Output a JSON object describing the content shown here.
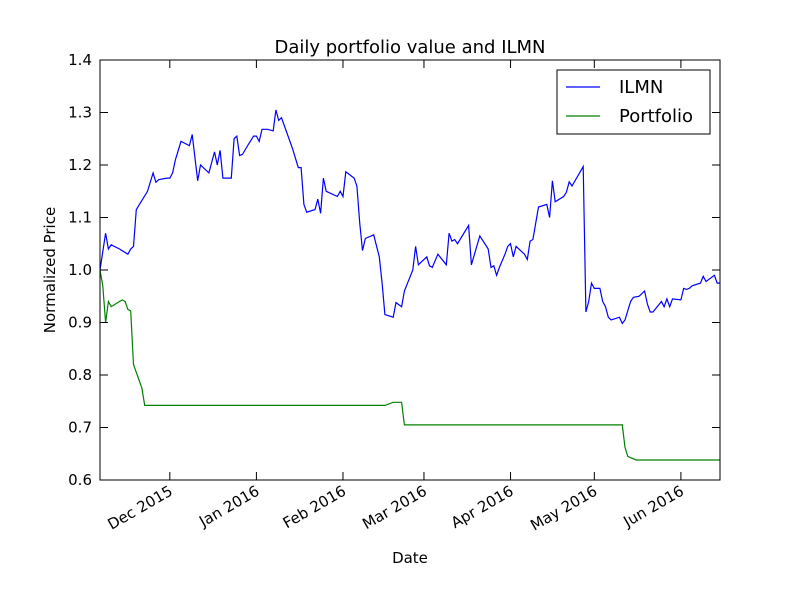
{
  "chart_data": {
    "type": "line",
    "title": "Daily portfolio value and ILMN",
    "xlabel": "Date",
    "ylabel": "Normalized Price",
    "xlim": [
      "2015-11-06",
      "2016-06-15"
    ],
    "ylim": [
      0.6,
      1.4
    ],
    "yticks": [
      0.6,
      0.7,
      0.8,
      0.9,
      1.0,
      1.1,
      1.2,
      1.3,
      1.4
    ],
    "ytick_labels": [
      "0.6",
      "0.7",
      "0.8",
      "0.9",
      "1.0",
      "1.1",
      "1.2",
      "1.3",
      "1.4"
    ],
    "xticks": [
      "2015-12-01",
      "2016-01-01",
      "2016-02-01",
      "2016-03-01",
      "2016-04-01",
      "2016-05-01",
      "2016-06-01"
    ],
    "xtick_labels": [
      "Dec 2015",
      "Jan 2016",
      "Feb 2016",
      "Mar 2016",
      "Apr 2016",
      "May 2016",
      "Jun 2016"
    ],
    "legend_position": "top-right",
    "grid": false,
    "series": [
      {
        "name": "ILMN",
        "color": "#0000ff",
        "points": [
          [
            "2015-11-06",
            1.0
          ],
          [
            "2015-11-08",
            1.07
          ],
          [
            "2015-11-09",
            1.04
          ],
          [
            "2015-11-10",
            1.048
          ],
          [
            "2015-11-13",
            1.04
          ],
          [
            "2015-11-16",
            1.03
          ],
          [
            "2015-11-17",
            1.04
          ],
          [
            "2015-11-18",
            1.045
          ],
          [
            "2015-11-19",
            1.115
          ],
          [
            "2015-11-23",
            1.15
          ],
          [
            "2015-11-25",
            1.185
          ],
          [
            "2015-11-26",
            1.167
          ],
          [
            "2015-11-27",
            1.172
          ],
          [
            "2015-11-30",
            1.175
          ],
          [
            "2015-12-01",
            1.175
          ],
          [
            "2015-12-02",
            1.185
          ],
          [
            "2015-12-03",
            1.21
          ],
          [
            "2015-12-05",
            1.245
          ],
          [
            "2015-12-08",
            1.237
          ],
          [
            "2015-12-09",
            1.258
          ],
          [
            "2015-12-11",
            1.17
          ],
          [
            "2015-12-12",
            1.2
          ],
          [
            "2015-12-15",
            1.185
          ],
          [
            "2015-12-17",
            1.225
          ],
          [
            "2015-12-18",
            1.2
          ],
          [
            "2015-12-19",
            1.228
          ],
          [
            "2015-12-20",
            1.175
          ],
          [
            "2015-12-23",
            1.175
          ],
          [
            "2015-12-24",
            1.25
          ],
          [
            "2015-12-25",
            1.255
          ],
          [
            "2015-12-26",
            1.218
          ],
          [
            "2015-12-27",
            1.22
          ],
          [
            "2015-12-29",
            1.238
          ],
          [
            "2015-12-31",
            1.255
          ],
          [
            "2016-01-01",
            1.255
          ],
          [
            "2016-01-02",
            1.245
          ],
          [
            "2016-01-03",
            1.268
          ],
          [
            "2016-01-05",
            1.268
          ],
          [
            "2016-01-07",
            1.265
          ],
          [
            "2016-01-08",
            1.305
          ],
          [
            "2016-01-09",
            1.285
          ],
          [
            "2016-01-10",
            1.29
          ],
          [
            "2016-01-14",
            1.23
          ],
          [
            "2016-01-16",
            1.195
          ],
          [
            "2016-01-17",
            1.195
          ],
          [
            "2016-01-18",
            1.125
          ],
          [
            "2016-01-19",
            1.11
          ],
          [
            "2016-01-22",
            1.115
          ],
          [
            "2016-01-23",
            1.135
          ],
          [
            "2016-01-24",
            1.108
          ],
          [
            "2016-01-25",
            1.175
          ],
          [
            "2016-01-26",
            1.15
          ],
          [
            "2016-01-30",
            1.14
          ],
          [
            "2016-01-31",
            1.15
          ],
          [
            "2016-02-01",
            1.14
          ],
          [
            "2016-02-02",
            1.187
          ],
          [
            "2016-02-05",
            1.175
          ],
          [
            "2016-02-06",
            1.16
          ],
          [
            "2016-02-07",
            1.09
          ],
          [
            "2016-02-08",
            1.037
          ],
          [
            "2016-02-09",
            1.06
          ],
          [
            "2016-02-12",
            1.067
          ],
          [
            "2016-02-14",
            1.025
          ],
          [
            "2016-02-15",
            0.975
          ],
          [
            "2016-02-16",
            0.915
          ],
          [
            "2016-02-19",
            0.91
          ],
          [
            "2016-02-20",
            0.938
          ],
          [
            "2016-02-22",
            0.93
          ],
          [
            "2016-02-23",
            0.96
          ],
          [
            "2016-02-26",
            1.0
          ],
          [
            "2016-02-27",
            1.045
          ],
          [
            "2016-02-28",
            1.01
          ],
          [
            "2016-02-29",
            1.015
          ],
          [
            "2016-03-02",
            1.025
          ],
          [
            "2016-03-03",
            1.008
          ],
          [
            "2016-03-04",
            1.005
          ],
          [
            "2016-03-06",
            1.03
          ],
          [
            "2016-03-09",
            1.01
          ],
          [
            "2016-03-10",
            1.07
          ],
          [
            "2016-03-11",
            1.055
          ],
          [
            "2016-03-12",
            1.058
          ],
          [
            "2016-03-13",
            1.05
          ],
          [
            "2016-03-17",
            1.085
          ],
          [
            "2016-03-18",
            1.01
          ],
          [
            "2016-03-21",
            1.065
          ],
          [
            "2016-03-24",
            1.04
          ],
          [
            "2016-03-25",
            1.005
          ],
          [
            "2016-03-26",
            1.008
          ],
          [
            "2016-03-27",
            0.99
          ],
          [
            "2016-03-28",
            1.005
          ],
          [
            "2016-03-30",
            1.03
          ],
          [
            "2016-03-31",
            1.045
          ],
          [
            "2016-04-01",
            1.05
          ],
          [
            "2016-04-02",
            1.025
          ],
          [
            "2016-04-03",
            1.045
          ],
          [
            "2016-04-06",
            1.03
          ],
          [
            "2016-04-07",
            1.02
          ],
          [
            "2016-04-08",
            1.055
          ],
          [
            "2016-04-09",
            1.058
          ],
          [
            "2016-04-11",
            1.12
          ],
          [
            "2016-04-14",
            1.125
          ],
          [
            "2016-04-15",
            1.1
          ],
          [
            "2016-04-16",
            1.17
          ],
          [
            "2016-04-17",
            1.13
          ],
          [
            "2016-04-20",
            1.14
          ],
          [
            "2016-04-21",
            1.148
          ],
          [
            "2016-04-22",
            1.168
          ],
          [
            "2016-04-23",
            1.16
          ],
          [
            "2016-04-27",
            1.197
          ],
          [
            "2016-04-28",
            0.92
          ],
          [
            "2016-04-29",
            0.94
          ],
          [
            "2016-04-30",
            0.975
          ],
          [
            "2016-05-01",
            0.965
          ],
          [
            "2016-05-03",
            0.965
          ],
          [
            "2016-05-04",
            0.94
          ],
          [
            "2016-05-05",
            0.93
          ],
          [
            "2016-05-06",
            0.91
          ],
          [
            "2016-05-07",
            0.905
          ],
          [
            "2016-05-10",
            0.91
          ],
          [
            "2016-05-11",
            0.898
          ],
          [
            "2016-05-12",
            0.905
          ],
          [
            "2016-05-14",
            0.94
          ],
          [
            "2016-05-15",
            0.948
          ],
          [
            "2016-05-17",
            0.95
          ],
          [
            "2016-05-19",
            0.96
          ],
          [
            "2016-05-20",
            0.935
          ],
          [
            "2016-05-21",
            0.92
          ],
          [
            "2016-05-22",
            0.92
          ],
          [
            "2016-05-25",
            0.94
          ],
          [
            "2016-05-26",
            0.93
          ],
          [
            "2016-05-27",
            0.945
          ],
          [
            "2016-05-28",
            0.93
          ],
          [
            "2016-05-29",
            0.945
          ],
          [
            "2016-06-01",
            0.943
          ],
          [
            "2016-06-02",
            0.965
          ],
          [
            "2016-06-03",
            0.963
          ],
          [
            "2016-06-04",
            0.965
          ],
          [
            "2016-06-05",
            0.97
          ],
          [
            "2016-06-08",
            0.975
          ],
          [
            "2016-06-09",
            0.988
          ],
          [
            "2016-06-10",
            0.978
          ],
          [
            "2016-06-13",
            0.99
          ],
          [
            "2016-06-14",
            0.975
          ],
          [
            "2016-06-15",
            0.975
          ],
          [
            "2016-06-17",
            0.953
          ],
          [
            "2016-06-20",
            0.94
          ]
        ]
      },
      {
        "name": "Portfolio",
        "color": "#008000",
        "points": [
          [
            "2015-11-06",
            1.0
          ],
          [
            "2015-11-07",
            0.97
          ],
          [
            "2015-11-08",
            0.9
          ],
          [
            "2015-11-09",
            0.94
          ],
          [
            "2015-11-10",
            0.93
          ],
          [
            "2015-11-13",
            0.94
          ],
          [
            "2015-11-14",
            0.943
          ],
          [
            "2015-11-15",
            0.94
          ],
          [
            "2015-11-16",
            0.925
          ],
          [
            "2015-11-17",
            0.922
          ],
          [
            "2015-11-18",
            0.82
          ],
          [
            "2015-11-21",
            0.775
          ],
          [
            "2015-11-22",
            0.742
          ],
          [
            "2016-02-16",
            0.742
          ],
          [
            "2016-02-19",
            0.748
          ],
          [
            "2016-02-22",
            0.748
          ],
          [
            "2016-02-23",
            0.705
          ],
          [
            "2016-05-11",
            0.705
          ],
          [
            "2016-05-12",
            0.662
          ],
          [
            "2016-05-13",
            0.645
          ],
          [
            "2016-05-16",
            0.638
          ],
          [
            "2016-06-20",
            0.638
          ]
        ]
      }
    ]
  }
}
